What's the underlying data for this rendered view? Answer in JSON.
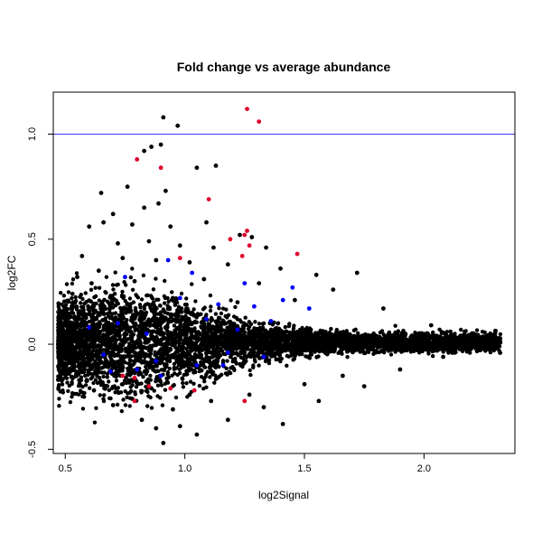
{
  "chart_data": {
    "type": "scatter",
    "title": "Fold change vs average abundance",
    "xlabel": "log2Signal",
    "ylabel": "log2FC",
    "xlim": [
      0.45,
      2.38
    ],
    "ylim": [
      -0.52,
      1.2
    ],
    "x_ticks": [
      0.5,
      1.0,
      1.5,
      2.0
    ],
    "x_tick_labels": [
      "0.5",
      "1.0",
      "1.5",
      "2.0"
    ],
    "y_ticks": [
      -0.5,
      0.0,
      0.5,
      1.0
    ],
    "y_tick_labels": [
      "-0.5",
      "0.0",
      "0.5",
      "1.0"
    ],
    "hline": {
      "y": 1.0,
      "color": "#3b3bff"
    },
    "grid": false,
    "colors": {
      "background": "#000000",
      "highlight_blue": "#0000ff",
      "highlight_red": "#e0002a"
    },
    "series": [
      {
        "color": "#000000",
        "points": [
          [
            0.91,
            1.08
          ],
          [
            0.97,
            1.04
          ],
          [
            0.86,
            0.94
          ],
          [
            0.83,
            0.92
          ],
          [
            0.9,
            0.95
          ],
          [
            1.13,
            0.85
          ],
          [
            1.05,
            0.84
          ],
          [
            0.65,
            0.72
          ],
          [
            0.76,
            0.75
          ],
          [
            0.92,
            0.73
          ],
          [
            0.89,
            0.67
          ],
          [
            0.83,
            0.65
          ],
          [
            0.7,
            0.62
          ],
          [
            0.6,
            0.56
          ],
          [
            0.66,
            0.58
          ],
          [
            0.78,
            0.57
          ],
          [
            0.94,
            0.56
          ],
          [
            1.09,
            0.58
          ],
          [
            1.23,
            0.52
          ],
          [
            1.28,
            0.51
          ],
          [
            0.72,
            0.48
          ],
          [
            0.85,
            0.49
          ],
          [
            0.98,
            0.47
          ],
          [
            1.12,
            0.46
          ],
          [
            1.34,
            0.46
          ],
          [
            0.57,
            0.42
          ],
          [
            0.74,
            0.41
          ],
          [
            0.88,
            0.4
          ],
          [
            1.02,
            0.39
          ],
          [
            1.18,
            0.38
          ],
          [
            1.4,
            0.36
          ],
          [
            1.55,
            0.33
          ],
          [
            1.72,
            0.34
          ],
          [
            0.55,
            0.32
          ],
          [
            0.64,
            0.35
          ],
          [
            0.61,
            0.29
          ],
          [
            0.79,
            0.3
          ],
          [
            1.08,
            0.31
          ],
          [
            1.31,
            0.29
          ],
          [
            1.62,
            0.26
          ],
          [
            0.53,
            0.24
          ],
          [
            0.69,
            0.23
          ],
          [
            0.95,
            0.22
          ],
          [
            1.22,
            0.2
          ],
          [
            1.46,
            0.21
          ],
          [
            1.83,
            0.17
          ],
          [
            2.03,
            0.09
          ],
          [
            2.17,
            0.06
          ],
          [
            2.26,
            0.03
          ],
          [
            0.5,
            0.12
          ],
          [
            0.52,
            -0.12
          ],
          [
            0.62,
            -0.22
          ],
          [
            0.7,
            -0.29
          ],
          [
            0.82,
            -0.36
          ],
          [
            0.88,
            -0.4
          ],
          [
            0.91,
            -0.47
          ],
          [
            0.98,
            -0.39
          ],
          [
            1.05,
            -0.43
          ],
          [
            1.18,
            -0.36
          ],
          [
            1.41,
            -0.38
          ],
          [
            1.33,
            -0.3
          ],
          [
            1.56,
            -0.27
          ],
          [
            1.75,
            -0.2
          ],
          [
            1.9,
            -0.12
          ],
          [
            2.08,
            -0.06
          ],
          [
            0.78,
            -0.26
          ],
          [
            0.95,
            -0.31
          ],
          [
            1.11,
            -0.27
          ],
          [
            1.27,
            -0.24
          ],
          [
            1.5,
            -0.19
          ],
          [
            1.66,
            -0.15
          ],
          [
            0.59,
            -0.17
          ],
          [
            0.74,
            -0.19
          ],
          [
            0.86,
            -0.21
          ],
          [
            1.02,
            -0.24
          ]
        ]
      },
      {
        "color": "#0000ff",
        "points": [
          [
            0.6,
            0.08
          ],
          [
            0.66,
            -0.05
          ],
          [
            0.72,
            0.1
          ],
          [
            0.75,
            0.32
          ],
          [
            0.8,
            -0.12
          ],
          [
            0.84,
            0.05
          ],
          [
            0.88,
            -0.08
          ],
          [
            0.93,
            0.4
          ],
          [
            0.98,
            0.22
          ],
          [
            1.03,
            0.34
          ],
          [
            1.05,
            -0.1
          ],
          [
            1.09,
            0.12
          ],
          [
            1.14,
            0.19
          ],
          [
            1.18,
            -0.04
          ],
          [
            1.22,
            0.07
          ],
          [
            1.25,
            0.29
          ],
          [
            1.29,
            0.18
          ],
          [
            1.33,
            -0.06
          ],
          [
            1.36,
            0.11
          ],
          [
            1.41,
            0.21
          ],
          [
            1.45,
            0.27
          ],
          [
            1.52,
            0.17
          ],
          [
            0.69,
            -0.13
          ],
          [
            0.9,
            -0.15
          ],
          [
            1.16,
            -0.1
          ]
        ]
      },
      {
        "color": "#e0002a",
        "points": [
          [
            1.26,
            1.12
          ],
          [
            1.31,
            1.06
          ],
          [
            0.9,
            0.84
          ],
          [
            0.8,
            0.88
          ],
          [
            1.1,
            0.69
          ],
          [
            1.26,
            0.54
          ],
          [
            1.25,
            0.52
          ],
          [
            1.19,
            0.5
          ],
          [
            1.27,
            0.47
          ],
          [
            1.47,
            0.43
          ],
          [
            0.98,
            0.41
          ],
          [
            1.24,
            0.42
          ],
          [
            0.79,
            -0.16
          ],
          [
            0.85,
            -0.2
          ],
          [
            0.94,
            -0.21
          ],
          [
            1.04,
            -0.22
          ],
          [
            0.79,
            -0.27
          ],
          [
            1.25,
            -0.27
          ],
          [
            0.74,
            -0.15
          ]
        ]
      }
    ]
  }
}
